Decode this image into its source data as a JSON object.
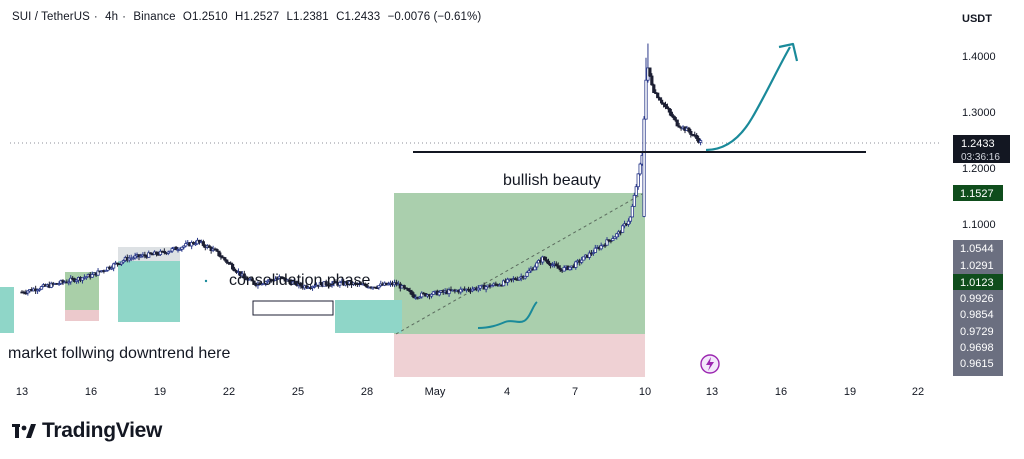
{
  "header": {
    "symbol": "SUI / TetherUS",
    "interval": "4h",
    "exchange": "Binance",
    "open": "O1.2510",
    "high": "H1.2527",
    "low": "L1.2381",
    "close": "C1.2433",
    "change": "−0.0076 (−0.61%)",
    "separator": "·"
  },
  "currency": "USDT",
  "brand": {
    "name": "TradingView"
  },
  "colors": {
    "up": "#2b3a8a",
    "down": "#1c1f33",
    "zone_green": "#9bc79f",
    "zone_red": "#e9bcc0",
    "zone_teal": "#8fd6c8",
    "arrow": "#1a8a9a",
    "price_tag": "#0f4d1c",
    "scale_tag": "#6b6f80"
  },
  "chart_data": {
    "type": "candlestick",
    "title": "SUI / TetherUS · 4h · Binance",
    "ylim": [
      0.945,
      1.44
    ],
    "y_ticks": [
      "1.4000",
      "1.3000",
      "1.2000",
      "1.1000"
    ],
    "x_ticks": [
      "13",
      "16",
      "19",
      "22",
      "25",
      "28",
      "May",
      "4",
      "7",
      "10",
      "13",
      "16",
      "19",
      "22"
    ],
    "last_price": {
      "value": "1.2433",
      "countdown": "03:36:16"
    },
    "price_tags": [
      "1.1527",
      "1.0544",
      "1.0291",
      "1.0123",
      "0.9926",
      "0.9854",
      "0.9729",
      "0.9698",
      "0.9615"
    ],
    "annotations": [
      "bullish beauty",
      "consolidation phase",
      "market follwing downtrend here"
    ],
    "resistance_level": 1.225,
    "close_path": [
      [
        0,
        0.975
      ],
      [
        3,
        0.99
      ],
      [
        6,
        1.005
      ],
      [
        9,
        1.035
      ],
      [
        12,
        1.045
      ],
      [
        15,
        1.065
      ],
      [
        16.5,
        1.048
      ],
      [
        18,
        1.02
      ],
      [
        19,
        1.0
      ],
      [
        20,
        0.99
      ],
      [
        22,
        1.0
      ],
      [
        24,
        0.985
      ],
      [
        26,
        0.99
      ],
      [
        28,
        0.99
      ],
      [
        30,
        0.985
      ],
      [
        32,
        0.99
      ],
      [
        33.5,
        0.968
      ],
      [
        35,
        0.972
      ],
      [
        37,
        0.977
      ],
      [
        39,
        0.982
      ],
      [
        41,
        0.99
      ],
      [
        43,
        1.005
      ],
      [
        44.5,
        1.035
      ],
      [
        46,
        1.015
      ],
      [
        47,
        1.02
      ],
      [
        49,
        1.05
      ],
      [
        50,
        1.065
      ],
      [
        51,
        1.08
      ],
      [
        52,
        1.108
      ],
      [
        53,
        1.22
      ],
      [
        53.4,
        1.38
      ],
      [
        54,
        1.335
      ],
      [
        55,
        1.305
      ],
      [
        56,
        1.275
      ],
      [
        57,
        1.262
      ],
      [
        58,
        1.243
      ]
    ]
  }
}
